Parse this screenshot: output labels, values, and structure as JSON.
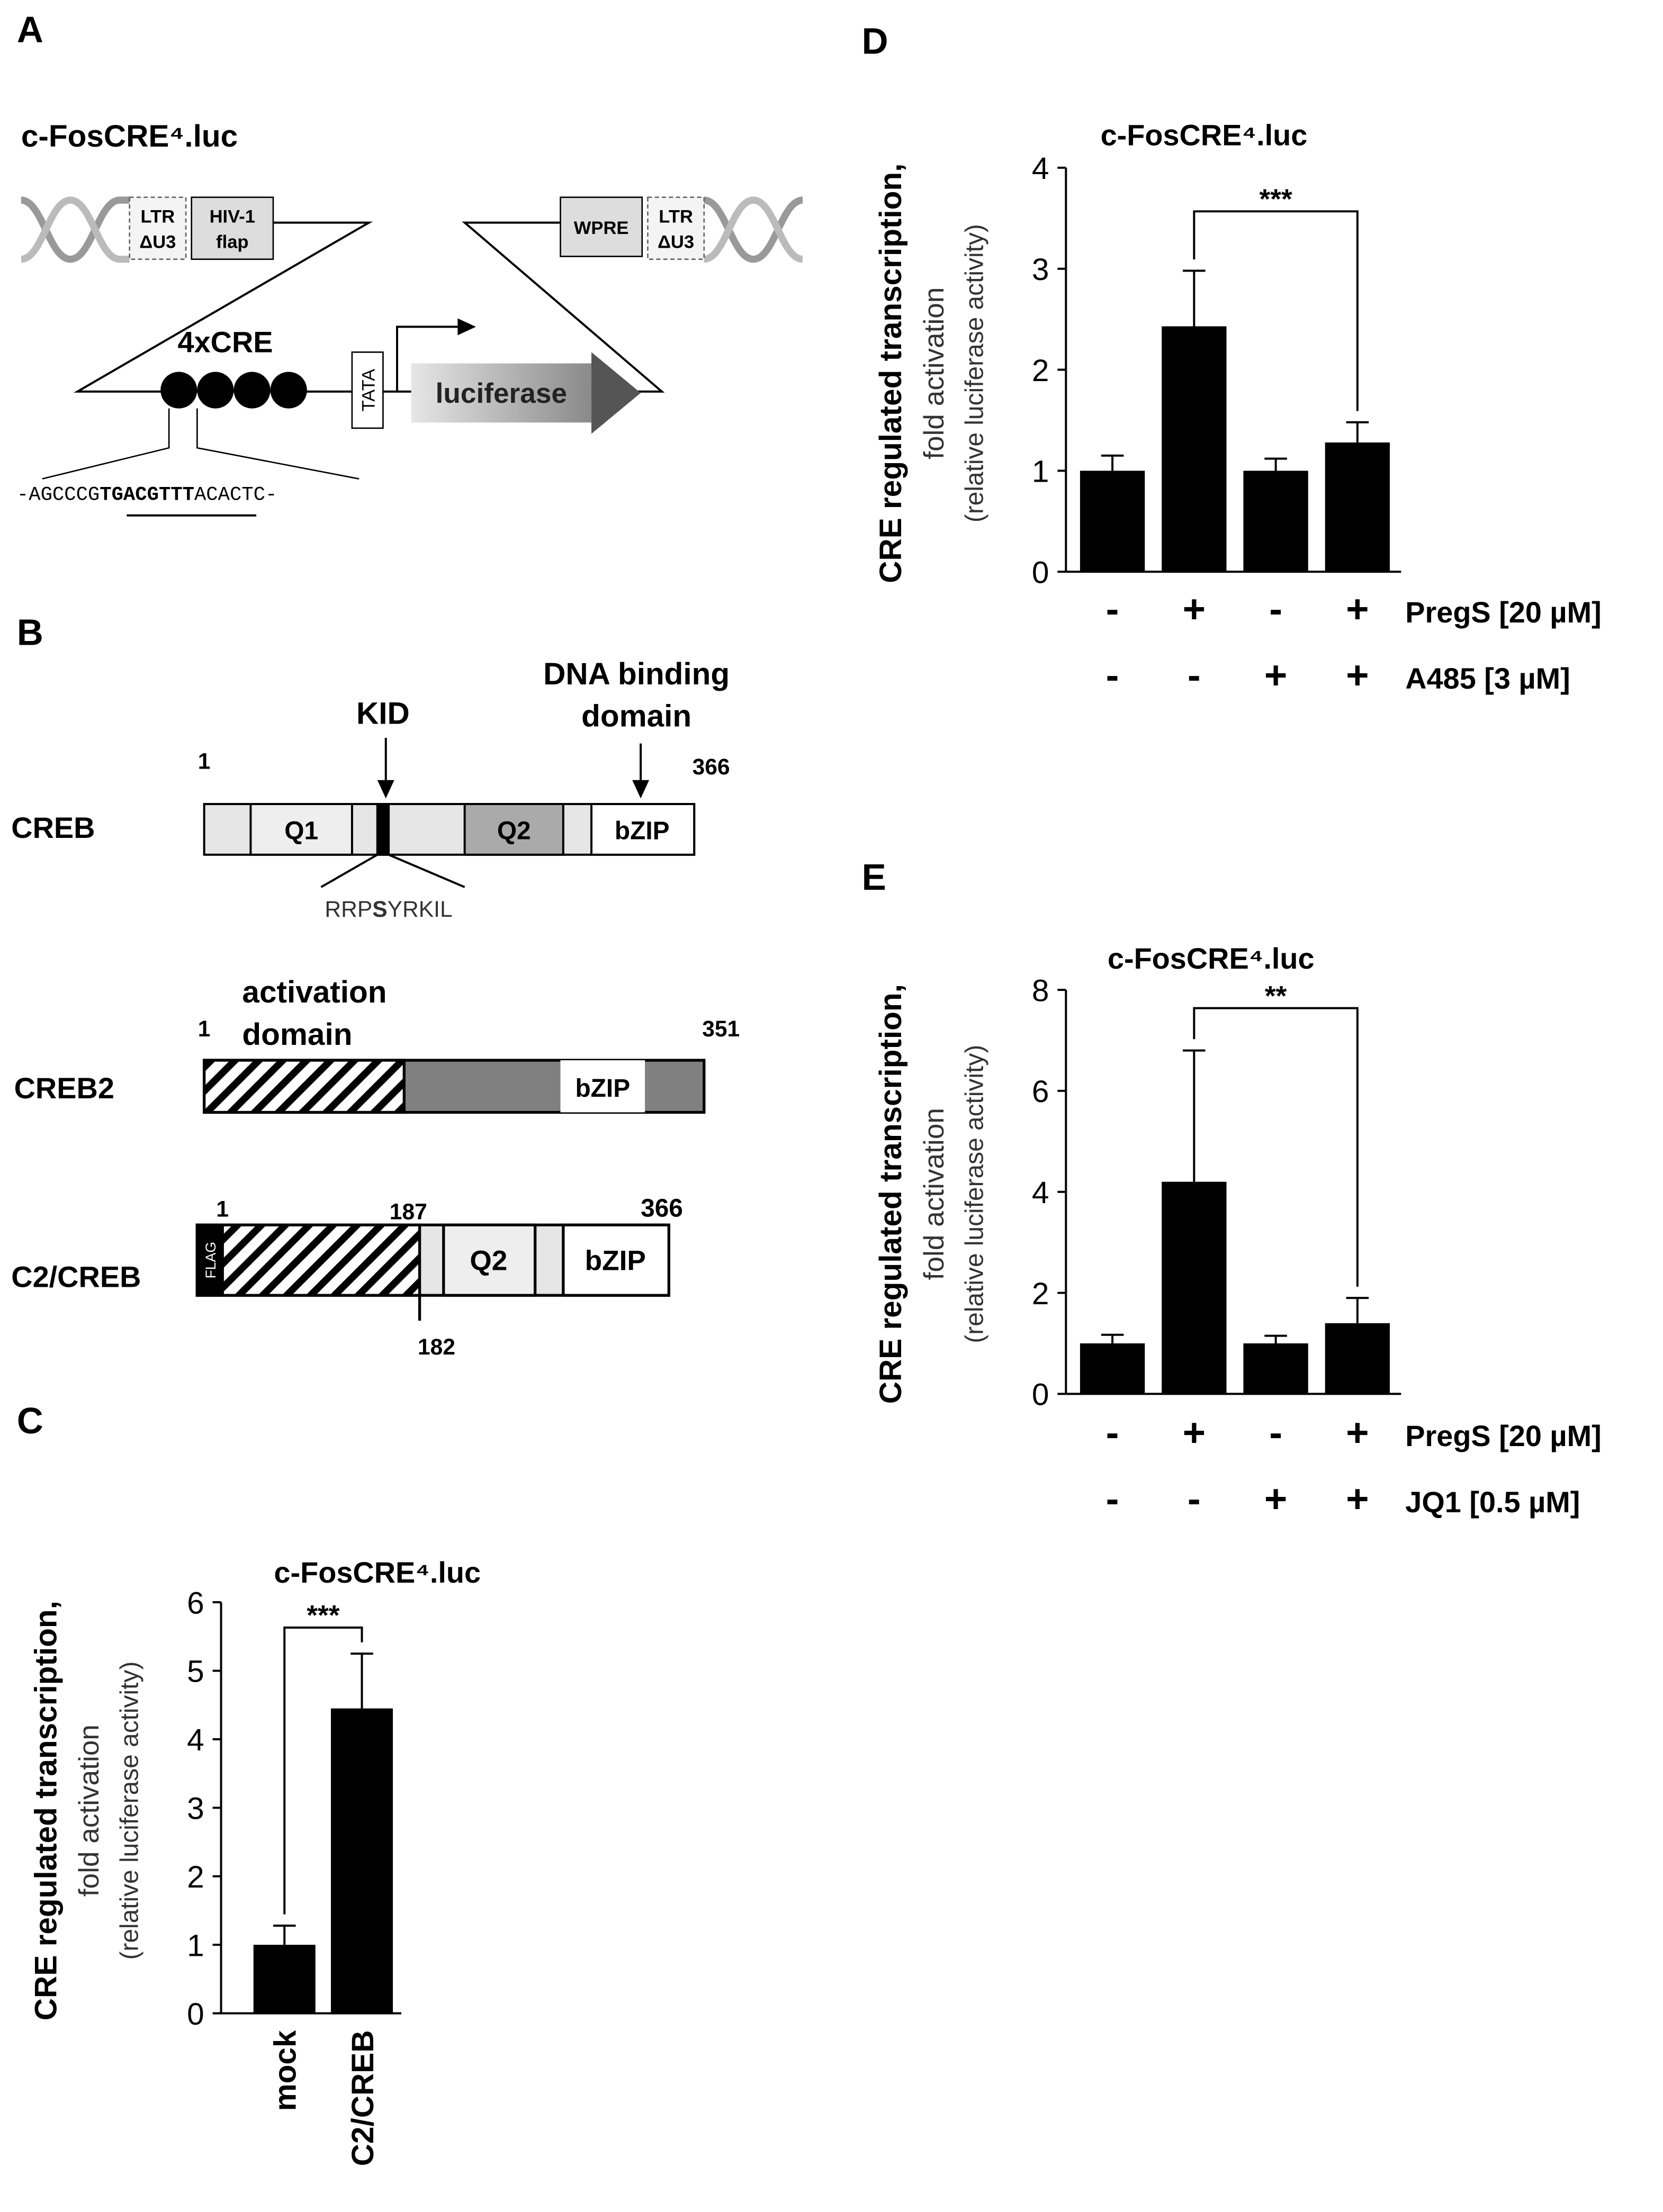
{
  "panel_labels": [
    "A",
    "B",
    "C",
    "D",
    "E"
  ],
  "diagram_a": {
    "title": "c-FosCRE⁴.luc",
    "ltr_left": [
      "LTR",
      "ΔU3"
    ],
    "flap": [
      "HIV-1",
      "flap"
    ],
    "wpre": "WPRE",
    "ltr_right": [
      "LTR",
      "ΔU3"
    ],
    "cre_label": "4xCRE",
    "tata": "TATA",
    "reporter": "luciferase",
    "sequence": [
      "-AGCCCG",
      "TGACGTTT",
      "ACACTC-"
    ]
  },
  "diagram_b": {
    "kid": "KID",
    "dna_binding": [
      "DNA binding",
      "domain"
    ],
    "creb": {
      "name": "CREB",
      "start": 1,
      "end": 366,
      "domains": [
        "Q1",
        "Q2",
        "bZIP"
      ],
      "motif": [
        "RRP",
        "S",
        "YRKIL"
      ]
    },
    "activation": [
      "activation",
      "domain"
    ],
    "creb2": {
      "name": "CREB2",
      "start": 1,
      "end": 351,
      "domain": "bZIP"
    },
    "c2creb": {
      "name": "C2/CREB",
      "start": 1,
      "junction": 187,
      "end": 366,
      "junction_creb": 182,
      "tag": "FLAG",
      "domains": [
        "Q2",
        "bZIP"
      ]
    }
  },
  "chart_data": [
    {
      "type": "bar",
      "title": "c-FosCRE⁴.luc",
      "ylabel": [
        "CRE regulated transcription,",
        "fold activation",
        "(relative luciferase activity)"
      ],
      "categories": [
        "mock",
        "C2/CREB"
      ],
      "values": [
        1,
        4.45
      ],
      "errors": [
        0.28,
        0.8
      ],
      "color": "#000000",
      "ylim": [
        0,
        6
      ],
      "yticks": [
        0,
        1,
        2,
        3,
        4,
        5,
        6
      ],
      "annotation": "***"
    },
    {
      "type": "bar",
      "title": "c-FosCRE⁴.luc",
      "ylabel": [
        "CRE regulated transcription,",
        "fold activation",
        "(relative luciferase activity)"
      ],
      "conditions": [
        {
          "name": "PregS [20 µM]",
          "labels": [
            "-",
            "+",
            "-",
            "+"
          ]
        },
        {
          "name": "A485 [3 µM]",
          "labels": [
            "-",
            "-",
            "+",
            "+"
          ]
        }
      ],
      "values": [
        1,
        2.43,
        1,
        1.28
      ],
      "errors": [
        0.15,
        0.55,
        0.12,
        0.2
      ],
      "color": "#000000",
      "ylim": [
        0,
        4
      ],
      "yticks": [
        0,
        1,
        2,
        3,
        4
      ],
      "annotation": "***"
    },
    {
      "type": "bar",
      "title": "c-FosCRE⁴.luc",
      "ylabel": [
        "CRE regulated transcription,",
        "fold activation",
        "(relative luciferase activity)"
      ],
      "conditions": [
        {
          "name": "PregS [20 µM]",
          "labels": [
            "-",
            "+",
            "-",
            "+"
          ]
        },
        {
          "name": "JQ1 [0.5 µM]",
          "labels": [
            "-",
            "-",
            "+",
            "+"
          ]
        }
      ],
      "values": [
        1,
        4.2,
        1,
        1.4
      ],
      "errors": [
        0.17,
        2.6,
        0.15,
        0.5
      ],
      "color": "#000000",
      "ylim": [
        0,
        8
      ],
      "yticks": [
        0,
        2,
        4,
        6,
        8
      ],
      "annotation": "**"
    }
  ]
}
